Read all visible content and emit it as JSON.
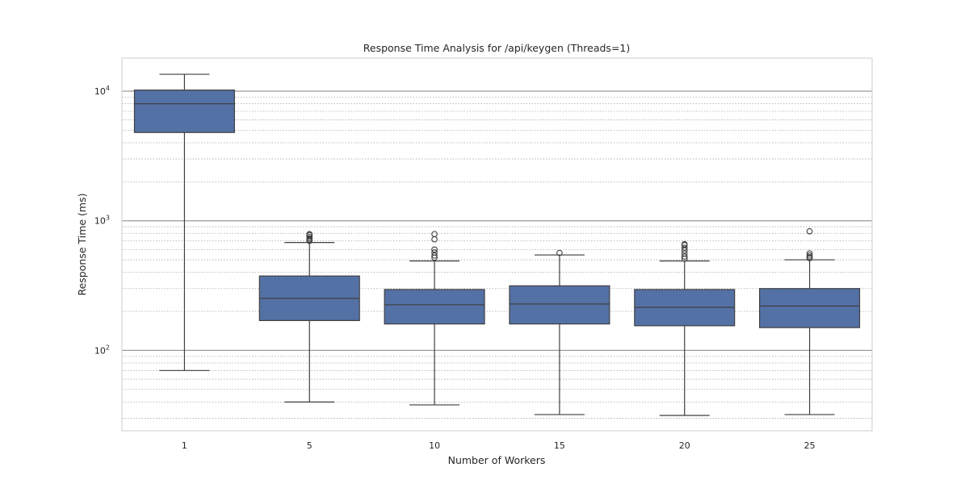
{
  "chart_data": {
    "type": "box",
    "title": "Response Time Analysis for /api/keygen (Threads=1)",
    "xlabel": "Number of Workers",
    "ylabel": "Response Time (ms)",
    "yscale": "log",
    "ylim": [
      24,
      18000
    ],
    "yticks": [
      {
        "value": 100,
        "base": "10",
        "exp": "2"
      },
      {
        "value": 1000,
        "base": "10",
        "exp": "3"
      },
      {
        "value": 10000,
        "base": "10",
        "exp": "4"
      }
    ],
    "grid": {
      "major": true,
      "minor": true,
      "minor_style": "dotted"
    },
    "categories": [
      "1",
      "5",
      "10",
      "15",
      "20",
      "25"
    ],
    "series": [
      {
        "color": "#5471a6",
        "boxes": [
          {
            "whisker_low": 70,
            "q1": 4800,
            "median": 8000,
            "q3": 10200,
            "whisker_high": 13500,
            "outliers": []
          },
          {
            "whisker_low": 40,
            "q1": 170,
            "median": 252,
            "q3": 375,
            "whisker_high": 680,
            "outliers": [
              700,
              715,
              730,
              750,
              775,
              790
            ]
          },
          {
            "whisker_low": 38,
            "q1": 160,
            "median": 225,
            "q3": 295,
            "whisker_high": 490,
            "outliers": [
              520,
              540,
              570,
              600,
              720,
              790
            ]
          },
          {
            "whisker_low": 32,
            "q1": 160,
            "median": 228,
            "q3": 315,
            "whisker_high": 545,
            "outliers": [
              565
            ]
          },
          {
            "whisker_low": 31.5,
            "q1": 155,
            "median": 215,
            "q3": 295,
            "whisker_high": 490,
            "outliers": [
              510,
              530,
              560,
              590,
              620,
              650,
              660
            ]
          },
          {
            "whisker_low": 32,
            "q1": 150,
            "median": 220,
            "q3": 300,
            "whisker_high": 500,
            "outliers": [
              515,
              525,
              540,
              560,
              830
            ]
          }
        ]
      }
    ]
  }
}
